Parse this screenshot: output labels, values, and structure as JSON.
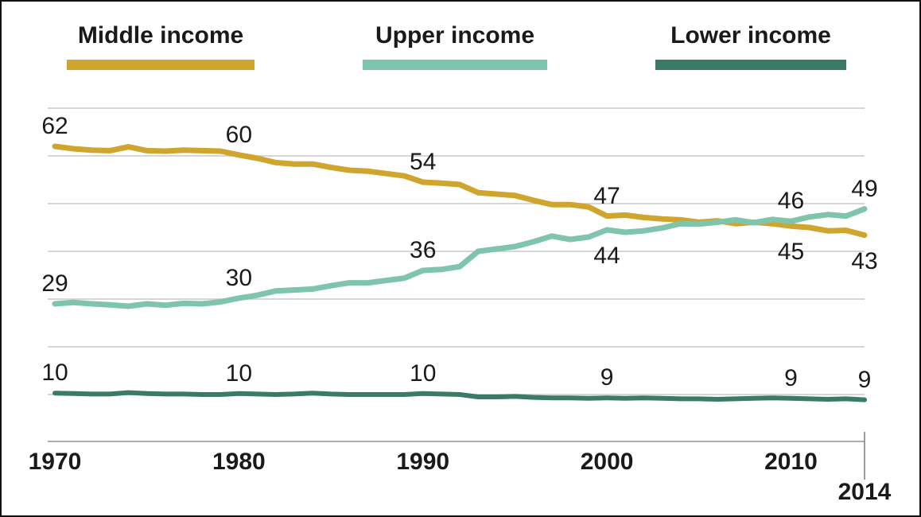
{
  "legend": {
    "items": [
      {
        "label": "Middle income",
        "color": "#d0a52e"
      },
      {
        "label": "Upper income",
        "color": "#7ec5ac"
      },
      {
        "label": "Lower income",
        "color": "#3a7b65"
      }
    ]
  },
  "colors": {
    "background": "#ffffff",
    "text": "#1a1a1a",
    "gridline": "#c9c9c9",
    "axis": "#909090",
    "middle_income": "#d0a52e",
    "upper_income": "#7ec5ac",
    "lower_income": "#3a7b65"
  },
  "chart_data": {
    "type": "line",
    "title": "",
    "xlabel": "",
    "ylabel": "",
    "grid": true,
    "legend_position": "top",
    "ylim": [
      5,
      72
    ],
    "grid_values": [
      10,
      20,
      30,
      40,
      50,
      60,
      70
    ],
    "x": [
      1970,
      1971,
      1972,
      1973,
      1974,
      1975,
      1976,
      1977,
      1978,
      1979,
      1980,
      1981,
      1982,
      1983,
      1984,
      1985,
      1986,
      1987,
      1988,
      1989,
      1990,
      1991,
      1992,
      1993,
      1994,
      1995,
      1996,
      1997,
      1998,
      1999,
      2000,
      2001,
      2002,
      2003,
      2004,
      2005,
      2006,
      2007,
      2008,
      2009,
      2010,
      2011,
      2012,
      2013,
      2014
    ],
    "series": [
      {
        "name": "Middle income",
        "color": "#d0a52e",
        "values": [
          62.0,
          61.5,
          61.2,
          61.1,
          61.9,
          61.1,
          61.0,
          61.2,
          61.1,
          61.0,
          60.2,
          59.5,
          58.6,
          58.3,
          58.3,
          57.6,
          57.0,
          56.8,
          56.3,
          55.8,
          54.5,
          54.3,
          54.0,
          52.3,
          52.0,
          51.7,
          50.7,
          49.8,
          49.8,
          49.3,
          47.4,
          47.6,
          47.1,
          46.8,
          46.6,
          46.1,
          46.4,
          45.8,
          46.1,
          45.8,
          45.3,
          45.0,
          44.3,
          44.4,
          43.4
        ]
      },
      {
        "name": "Upper income",
        "color": "#7ec5ac",
        "values": [
          29.0,
          29.3,
          29.0,
          28.8,
          28.5,
          29.0,
          28.7,
          29.1,
          29.0,
          29.4,
          30.2,
          30.8,
          31.7,
          31.9,
          32.1,
          32.8,
          33.4,
          33.4,
          33.9,
          34.4,
          36.0,
          36.2,
          36.8,
          40.0,
          40.5,
          41.0,
          42.0,
          43.2,
          42.5,
          43.0,
          44.5,
          44.0,
          44.3,
          44.9,
          45.8,
          45.7,
          46.1,
          46.6,
          46.0,
          46.7,
          46.3,
          47.2,
          47.7,
          47.4,
          48.9
        ]
      },
      {
        "name": "Lower income",
        "color": "#3a7b65",
        "values": [
          10.3,
          10.2,
          10.1,
          10.1,
          10.4,
          10.2,
          10.1,
          10.1,
          10.0,
          10.0,
          10.2,
          10.1,
          10.0,
          10.1,
          10.3,
          10.1,
          10.0,
          10.0,
          10.0,
          10.0,
          10.2,
          10.1,
          10.0,
          9.5,
          9.5,
          9.6,
          9.4,
          9.3,
          9.3,
          9.2,
          9.3,
          9.2,
          9.3,
          9.2,
          9.1,
          9.1,
          9.0,
          9.1,
          9.2,
          9.3,
          9.2,
          9.1,
          9.0,
          9.1,
          8.9
        ]
      }
    ],
    "x_ticks": [
      {
        "label": "1970",
        "year": 1970,
        "row": 0
      },
      {
        "label": "1980",
        "year": 1980,
        "row": 0
      },
      {
        "label": "1990",
        "year": 1990,
        "row": 0
      },
      {
        "label": "2000",
        "year": 2000,
        "row": 0
      },
      {
        "label": "2010",
        "year": 2010,
        "row": 0
      },
      {
        "label": "2014",
        "year": 2014,
        "row": 1
      }
    ],
    "annotations": [
      {
        "series": "Middle income",
        "year": 1970,
        "value": 62,
        "label": "62",
        "placement": "above"
      },
      {
        "series": "Middle income",
        "year": 1980,
        "value": 60,
        "label": "60",
        "placement": "above"
      },
      {
        "series": "Middle income",
        "year": 1990,
        "value": 54,
        "label": "54",
        "placement": "above"
      },
      {
        "series": "Middle income",
        "year": 2000,
        "value": 47,
        "label": "47",
        "placement": "above"
      },
      {
        "series": "Middle income",
        "year": 2010,
        "value": 45,
        "label": "45",
        "placement": "below"
      },
      {
        "series": "Middle income",
        "year": 2014,
        "value": 43,
        "label": "43",
        "placement": "below"
      },
      {
        "series": "Upper income",
        "year": 1970,
        "value": 29,
        "label": "29",
        "placement": "above"
      },
      {
        "series": "Upper income",
        "year": 1980,
        "value": 30,
        "label": "30",
        "placement": "above"
      },
      {
        "series": "Upper income",
        "year": 1990,
        "value": 36,
        "label": "36",
        "placement": "above"
      },
      {
        "series": "Upper income",
        "year": 2000,
        "value": 44,
        "label": "44",
        "placement": "below"
      },
      {
        "series": "Upper income",
        "year": 2010,
        "value": 46,
        "label": "46",
        "placement": "above"
      },
      {
        "series": "Upper income",
        "year": 2014,
        "value": 49,
        "label": "49",
        "placement": "above"
      },
      {
        "series": "Lower income",
        "year": 1970,
        "value": 10,
        "label": "10",
        "placement": "above"
      },
      {
        "series": "Lower income",
        "year": 1980,
        "value": 10,
        "label": "10",
        "placement": "above"
      },
      {
        "series": "Lower income",
        "year": 1990,
        "value": 10,
        "label": "10",
        "placement": "above"
      },
      {
        "series": "Lower income",
        "year": 2000,
        "value": 9,
        "label": "9",
        "placement": "above"
      },
      {
        "series": "Lower income",
        "year": 2010,
        "value": 9,
        "label": "9",
        "placement": "above"
      },
      {
        "series": "Lower income",
        "year": 2014,
        "value": 9,
        "label": "9",
        "placement": "above"
      }
    ]
  }
}
